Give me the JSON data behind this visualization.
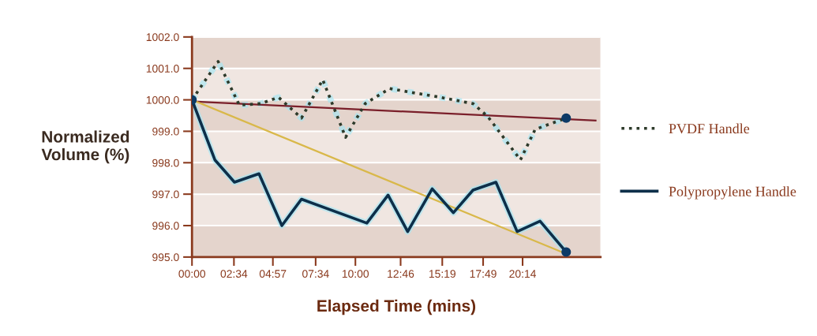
{
  "chart_data": {
    "type": "line",
    "xlabel": "Elapsed Time (mins)",
    "ylabel": "Normalized\nVolume (%)",
    "xlim": [
      0,
      25.0
    ],
    "ylim": [
      995.0,
      1002.0
    ],
    "xticks": [
      {
        "value": 0,
        "label": "00:00"
      },
      {
        "value": 2.567,
        "label": "02:34"
      },
      {
        "value": 4.95,
        "label": "04:57"
      },
      {
        "value": 7.567,
        "label": "07:34"
      },
      {
        "value": 10,
        "label": "10:00"
      },
      {
        "value": 12.767,
        "label": "12:46"
      },
      {
        "value": 15.317,
        "label": "15:19"
      },
      {
        "value": 17.817,
        "label": "17:49"
      },
      {
        "value": 20.233,
        "label": "20:14"
      }
    ],
    "yticks": [
      {
        "value": 995,
        "label": "995.0"
      },
      {
        "value": 996,
        "label": "996.0"
      },
      {
        "value": 997,
        "label": "997.0"
      },
      {
        "value": 998,
        "label": "998.0"
      },
      {
        "value": 999,
        "label": "999.0"
      },
      {
        "value": 1000,
        "label": "1000.0"
      },
      {
        "value": 1001,
        "label": "1001.0"
      },
      {
        "value": 1002,
        "label": "1002.0"
      }
    ],
    "grid": "y",
    "legend": "right",
    "bands": [
      {
        "axis": "y",
        "from": 995,
        "to": 996,
        "color": "#e4d4cc"
      },
      {
        "axis": "y",
        "from": 996,
        "to": 997,
        "color": "#f0e6e1"
      },
      {
        "axis": "y",
        "from": 997,
        "to": 998,
        "color": "#e4d4cc"
      },
      {
        "axis": "y",
        "from": 998,
        "to": 999,
        "color": "#f0e6e1"
      },
      {
        "axis": "y",
        "from": 999,
        "to": 1000,
        "color": "#e4d4cc"
      },
      {
        "axis": "y",
        "from": 1000,
        "to": 1001,
        "color": "#f0e6e1"
      },
      {
        "axis": "y",
        "from": 1001,
        "to": 1002,
        "color": "#e4d4cc"
      }
    ],
    "series": [
      {
        "color": "#7a1f2a",
        "line_style": "solid",
        "x": [
          0,
          24.7
        ],
        "values": [
          999.95,
          999.34
        ]
      },
      {
        "color": "#d9b84a",
        "line_style": "solid",
        "x": [
          0,
          22.9
        ],
        "values": [
          1000.0,
          995.1
        ]
      },
      {
        "name": "PVDF Handle",
        "color": "#2d3a2a",
        "line_style": "dotted",
        "x": [
          0,
          1.6,
          2.9,
          4.2,
          5.3,
          6.7,
          8.0,
          9.4,
          10.6,
          12.1,
          13.5,
          15.0,
          17.2,
          18.1,
          20.1,
          21.0,
          22.9
        ],
        "values": [
          1000.0,
          1001.22,
          999.83,
          999.88,
          1000.08,
          999.42,
          1000.64,
          998.81,
          999.88,
          1000.36,
          1000.23,
          1000.1,
          999.88,
          999.47,
          998.09,
          999.06,
          999.42
        ]
      },
      {
        "name": "Polypropylene Handle",
        "color": "#0d2f4a",
        "line_style": "solid",
        "x": [
          0,
          1.4,
          2.6,
          4.1,
          5.5,
          6.7,
          10.7,
          12.0,
          13.2,
          14.7,
          16.0,
          17.2,
          18.6,
          19.9,
          21.3,
          22.9
        ],
        "values": [
          1000.0,
          998.09,
          997.38,
          997.65,
          996.0,
          996.84,
          996.08,
          996.97,
          995.81,
          997.17,
          996.41,
          997.13,
          997.38,
          995.81,
          996.14,
          995.16
        ]
      },
      {
        "type": "scatter",
        "color": "#0d3a66",
        "marker": "circle",
        "x": [
          0,
          22.9,
          22.9
        ],
        "values": [
          1000.0,
          999.42,
          995.16
        ]
      }
    ]
  }
}
